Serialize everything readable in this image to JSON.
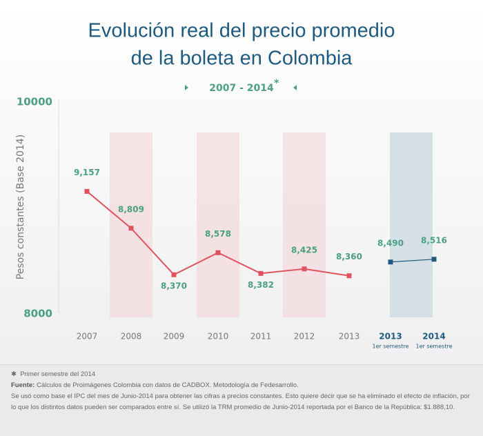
{
  "chart_data": {
    "type": "line",
    "title": [
      "Evolución real del precio promedio",
      "de la boleta en Colombia"
    ],
    "subtitle": "2007 - 2014",
    "subtitle_mark": "*",
    "y_label": "Pesos constantes (Base 2014)",
    "categories": [
      "2007",
      "2008",
      "2009",
      "2010",
      "2011",
      "2012",
      "2013",
      "2013",
      "2014"
    ],
    "category_sublabels": [
      null,
      null,
      null,
      null,
      null,
      null,
      null,
      "1er semestre",
      "1er semestre"
    ],
    "series": [
      {
        "color": "#e05260",
        "values": [
          9157,
          8809,
          8370,
          8578,
          8382,
          8425,
          8360,
          null,
          null
        ],
        "value_labels": [
          "9,157",
          "8,809",
          "8,370",
          "8,578",
          "8,382",
          "8,425",
          "8,360",
          null,
          null
        ]
      },
      {
        "color": "#1e5a7f",
        "values": [
          null,
          null,
          null,
          null,
          null,
          null,
          null,
          8490,
          8516
        ],
        "value_labels": [
          null,
          null,
          null,
          null,
          null,
          null,
          null,
          "8,490",
          "8,516"
        ]
      }
    ],
    "ylim": [
      8000,
      10000
    ],
    "yticks": [
      8000,
      10000
    ]
  },
  "notes": {
    "mark": "✱",
    "asterisk_note": "Primer semestre del 2014",
    "source_label": "Fuente:",
    "source": "Cálculos de Proimágenes Colombia con datos de CADBOX. Metodología de Fedesarrollo.",
    "text": "Se usó como base el IPC del mes de Junio-2014 para obtener las cifras a precios constantes. Esto quiere decir que se ha eliminado el efecto de inflación, por lo que los distintos datos pueden ser comparados entre sí. Se utilizó la TRM promedio de Junio-2014 reportada por el Banco de la República: $1.888,10."
  }
}
